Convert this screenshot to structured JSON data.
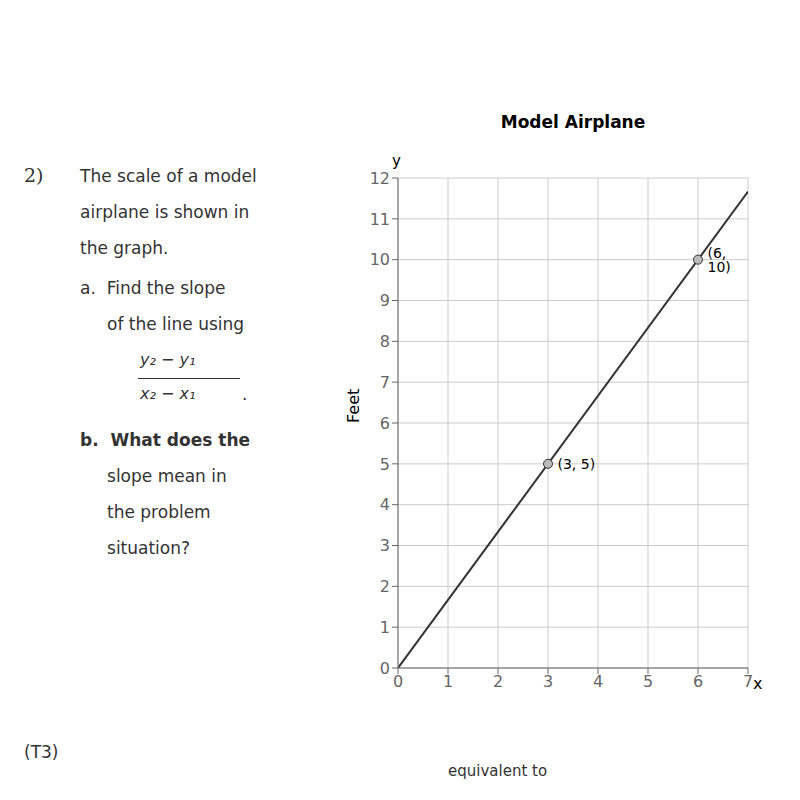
{
  "chart_data": {
    "type": "line",
    "title": "Model Airplane",
    "xlabel": "x",
    "ylabel": "Feet",
    "xlim": [
      0,
      7
    ],
    "ylim": [
      0,
      12
    ],
    "xticks": [
      0,
      1,
      2,
      3,
      4,
      5,
      6,
      7
    ],
    "yticks": [
      0,
      1,
      2,
      3,
      4,
      5,
      6,
      7,
      8,
      9,
      10,
      11,
      12
    ],
    "grid": true,
    "series": [
      {
        "type": "line",
        "x": [
          0,
          7
        ],
        "values": [
          0,
          11.667
        ],
        "color": "#333333"
      },
      {
        "type": "scatter",
        "x": [
          3,
          6
        ],
        "values": [
          5,
          10
        ],
        "value_labels": [
          "(3, 5)",
          "(6, 10)"
        ],
        "data_labels": true,
        "marker": "circle",
        "color": "#bbbbbb"
      }
    ],
    "annotations": [
      "2)",
      "The scale of a model",
      "airplane is shown in",
      "the graph.",
      "a.  Find the slope",
      "     of the line using",
      "y₂ − y₁",
      "x₂ − x₁",
      ".",
      "b.  What does the",
      "     slope mean in",
      "     the problem",
      "     situation?",
      "(T3)",
      "equivalent to",
      "y"
    ]
  }
}
